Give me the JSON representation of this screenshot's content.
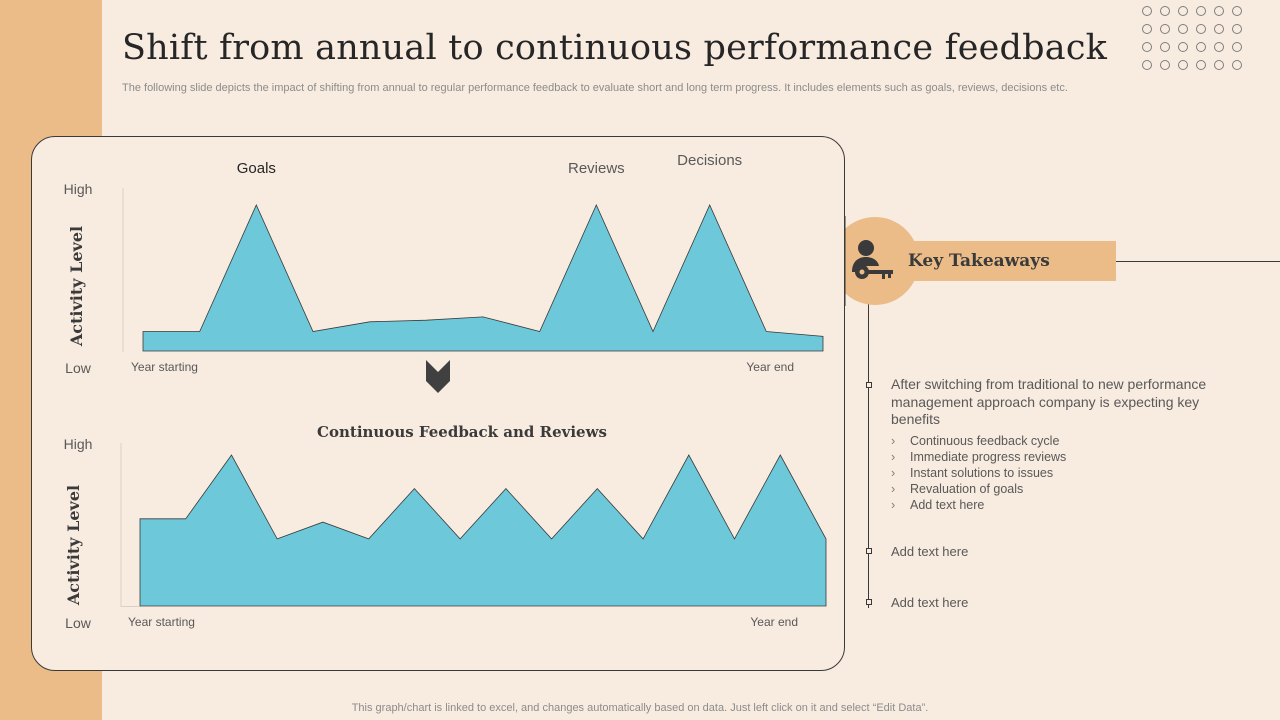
{
  "slide": {
    "title": "Shift from annual to continuous performance feedback",
    "subtitle": "The following slide depicts the impact of shifting from annual to regular performance feedback to evaluate short and long term progress. It includes elements such as goals, reviews, decisions etc.",
    "footer": "This graph/chart is linked to excel,  and changes automatically based on data. Just left click on it and select “Edit Data”.",
    "colors": {
      "background": "#f8ebe0",
      "accent": "#ecbc88",
      "area_fill": "#6dc8d9",
      "text_dark": "#262626"
    }
  },
  "chart_data": [
    {
      "type": "area",
      "title": "",
      "ylabel": "Activity Level",
      "y_ticks": [
        "High",
        "Low"
      ],
      "x_ticks": [
        "Year starting",
        "Year end"
      ],
      "ylim": [
        0,
        100
      ],
      "annotations": [
        {
          "text": "Goals",
          "index": 2
        },
        {
          "text": "Reviews",
          "index": 8
        },
        {
          "text": "Decisions",
          "index": 10
        }
      ],
      "values": [
        12,
        12,
        90,
        12,
        18,
        19,
        21,
        12,
        90,
        12,
        90,
        12,
        9
      ]
    },
    {
      "type": "area",
      "title": "Continuous Feedback and Reviews",
      "ylabel": "Activity Level",
      "y_ticks": [
        "High",
        "Low"
      ],
      "x_ticks": [
        "Year starting",
        "Year end"
      ],
      "ylim": [
        0,
        100
      ],
      "annotations": [],
      "values": [
        52,
        52,
        90,
        40,
        50,
        40,
        70,
        40,
        70,
        40,
        70,
        40,
        90,
        40,
        90,
        40
      ]
    }
  ],
  "takeaways": {
    "label": "Key Takeaways",
    "icon": "person-key-icon",
    "intro": "After switching from traditional to new performance management approach company is expecting key benefits",
    "bullets": [
      "Continuous  feedback cycle",
      "Immediate  progress reviews",
      "Instant solutions to issues",
      "Revaluation  of goals",
      "Add text here"
    ],
    "items": [
      "Add text here",
      "Add text here"
    ]
  },
  "icons": {
    "divider": "chevron-down-icon",
    "decoration": "dot-grid-icon"
  }
}
